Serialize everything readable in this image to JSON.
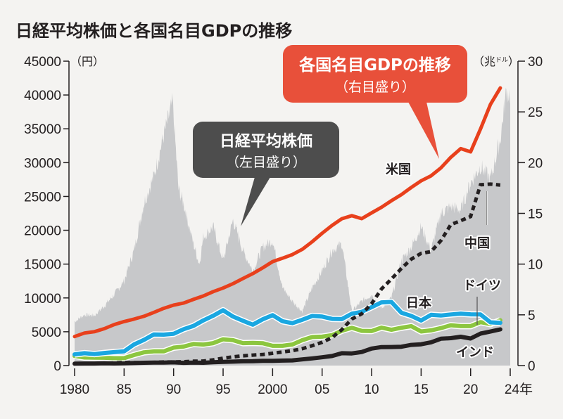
{
  "chart_data": {
    "type": "line",
    "title": "日経平均株価と各国名目GDPの推移",
    "xlabel": "",
    "x_tick_labels": [
      "1980",
      "85",
      "90",
      "95",
      "2000",
      "05",
      "10",
      "15",
      "20",
      "24年"
    ],
    "x_ticks": [
      1980,
      1985,
      1990,
      1995,
      2000,
      2005,
      2010,
      2015,
      2020,
      2024
    ],
    "xlim": [
      1980,
      2024
    ],
    "left_axis": {
      "unit": "（円）",
      "ylim": [
        0,
        45000
      ],
      "ticks": [
        0,
        5000,
        10000,
        15000,
        20000,
        25000,
        30000,
        35000,
        40000,
        45000
      ],
      "tick_labels": [
        "0",
        "5000",
        "10000",
        "15000",
        "20000",
        "25000",
        "30000",
        "35000",
        "40000",
        "45000"
      ]
    },
    "right_axis": {
      "unit": "（兆ドル）",
      "unit_main": "（兆",
      "unit_small": "ドル",
      "unit_close": "）",
      "ylim": [
        0,
        30
      ],
      "ticks": [
        0,
        5,
        10,
        15,
        20,
        25,
        30
      ],
      "tick_labels": [
        "0",
        "5",
        "10",
        "15",
        "20",
        "25",
        "30"
      ]
    },
    "area_series": {
      "name": "日経平均株価",
      "axis": "left",
      "color": "#c7c8ca",
      "x": [
        1980,
        1981,
        1982,
        1983,
        1984,
        1985,
        1986,
        1987,
        1988,
        1989,
        1989.9,
        1990.5,
        1991,
        1992,
        1992.6,
        1993,
        1994,
        1995,
        1996,
        1997,
        1998,
        1999,
        2000,
        2001,
        2002,
        2003,
        2004,
        2005,
        2006,
        2007,
        2008,
        2009,
        2010,
        2011,
        2012,
        2013,
        2014,
        2015,
        2016,
        2017,
        2018,
        2019,
        2020,
        2021,
        2022,
        2023,
        2023.6,
        2024
      ],
      "values": [
        6500,
        7500,
        7400,
        8800,
        10500,
        12500,
        17000,
        24000,
        28000,
        34000,
        38900,
        26000,
        24000,
        18000,
        15000,
        19000,
        20500,
        15500,
        21500,
        17000,
        14000,
        17500,
        18500,
        11500,
        9500,
        8000,
        11500,
        14000,
        17000,
        18000,
        8000,
        9500,
        10500,
        8500,
        10000,
        15500,
        17500,
        20500,
        17000,
        22500,
        23500,
        23000,
        27000,
        29500,
        27500,
        33500,
        40500,
        40000
      ]
    },
    "series": [
      {
        "name": "米国",
        "axis": "right",
        "color": "#e8401c",
        "style": "solid",
        "x": [
          1980,
          1981,
          1982,
          1983,
          1984,
          1985,
          1986,
          1987,
          1988,
          1989,
          1990,
          1991,
          1992,
          1993,
          1994,
          1995,
          1996,
          1997,
          1998,
          1999,
          2000,
          2001,
          2002,
          2003,
          2004,
          2005,
          2006,
          2007,
          2008,
          2009,
          2010,
          2011,
          2012,
          2013,
          2014,
          2015,
          2016,
          2017,
          2018,
          2019,
          2020,
          2021,
          2022,
          2023
        ],
        "values": [
          2.86,
          3.21,
          3.34,
          3.64,
          4.04,
          4.34,
          4.58,
          4.86,
          5.24,
          5.64,
          5.96,
          6.16,
          6.52,
          6.86,
          7.29,
          7.64,
          8.07,
          8.58,
          9.06,
          9.63,
          10.25,
          10.58,
          10.94,
          11.46,
          12.21,
          13.04,
          13.81,
          14.47,
          14.77,
          14.48,
          15.05,
          15.6,
          16.25,
          16.84,
          17.55,
          18.21,
          18.7,
          19.48,
          20.53,
          21.38,
          21.06,
          23.32,
          25.74,
          27.36
        ]
      },
      {
        "name": "中国",
        "axis": "right",
        "color": "#231f20",
        "style": "dashed",
        "x": [
          1980,
          1981,
          1982,
          1983,
          1984,
          1985,
          1986,
          1987,
          1988,
          1989,
          1990,
          1991,
          1992,
          1993,
          1994,
          1995,
          1996,
          1997,
          1998,
          1999,
          2000,
          2001,
          2002,
          2003,
          2004,
          2005,
          2006,
          2007,
          2008,
          2009,
          2010,
          2011,
          2012,
          2013,
          2014,
          2015,
          2016,
          2017,
          2018,
          2019,
          2020,
          2021,
          2022,
          2023
        ],
        "values": [
          0.19,
          0.2,
          0.21,
          0.23,
          0.26,
          0.31,
          0.3,
          0.27,
          0.31,
          0.35,
          0.36,
          0.38,
          0.43,
          0.44,
          0.56,
          0.73,
          0.86,
          0.96,
          1.03,
          1.09,
          1.21,
          1.34,
          1.47,
          1.66,
          1.96,
          2.29,
          2.75,
          3.55,
          4.59,
          5.1,
          6.09,
          7.55,
          8.53,
          9.57,
          10.48,
          11.06,
          11.23,
          12.31,
          13.89,
          14.28,
          14.69,
          17.82,
          17.88,
          17.79
        ]
      },
      {
        "name": "日本",
        "axis": "right",
        "color": "#1aa7e1",
        "style": "solid",
        "x": [
          1980,
          1981,
          1982,
          1983,
          1984,
          1985,
          1986,
          1987,
          1988,
          1989,
          1990,
          1991,
          1992,
          1993,
          1994,
          1995,
          1996,
          1997,
          1998,
          1999,
          2000,
          2001,
          2002,
          2003,
          2004,
          2005,
          2006,
          2007,
          2008,
          2009,
          2010,
          2011,
          2012,
          2013,
          2014,
          2015,
          2016,
          2017,
          2018,
          2019,
          2020,
          2021,
          2022,
          2023
        ],
        "values": [
          1.1,
          1.22,
          1.13,
          1.24,
          1.32,
          1.4,
          2.08,
          2.53,
          3.07,
          3.05,
          3.13,
          3.58,
          3.91,
          4.45,
          4.91,
          5.45,
          4.83,
          4.41,
          4.03,
          4.56,
          4.97,
          4.37,
          4.18,
          4.52,
          4.89,
          4.83,
          4.6,
          4.58,
          5.11,
          5.29,
          5.76,
          6.23,
          6.27,
          5.21,
          4.9,
          4.44,
          5.0,
          4.93,
          5.04,
          5.12,
          5.05,
          5.04,
          4.26,
          4.21
        ]
      },
      {
        "name": "ドイツ",
        "axis": "right",
        "color": "#8cc63f",
        "style": "solid",
        "x": [
          1980,
          1981,
          1982,
          1983,
          1984,
          1985,
          1986,
          1987,
          1988,
          1989,
          1990,
          1991,
          1992,
          1993,
          1994,
          1995,
          1996,
          1997,
          1998,
          1999,
          2000,
          2001,
          2002,
          2003,
          2004,
          2005,
          2006,
          2007,
          2008,
          2009,
          2010,
          2011,
          2012,
          2013,
          2014,
          2015,
          2016,
          2017,
          2018,
          2019,
          2020,
          2021,
          2022,
          2023
        ],
        "values": [
          0.95,
          0.8,
          0.78,
          0.77,
          0.73,
          0.73,
          1.04,
          1.3,
          1.4,
          1.4,
          1.77,
          1.87,
          2.13,
          2.07,
          2.21,
          2.59,
          2.5,
          2.21,
          2.24,
          2.2,
          1.95,
          1.95,
          2.08,
          2.5,
          2.81,
          2.85,
          3.0,
          3.43,
          3.73,
          3.42,
          3.4,
          3.74,
          3.53,
          3.73,
          3.89,
          3.36,
          3.47,
          3.69,
          3.98,
          3.89,
          3.89,
          4.28,
          4.08,
          4.46
        ]
      },
      {
        "name": "インド",
        "axis": "right",
        "color": "#231f20",
        "style": "solid",
        "x": [
          1980,
          1981,
          1982,
          1983,
          1984,
          1985,
          1986,
          1987,
          1988,
          1989,
          1990,
          1991,
          1992,
          1993,
          1994,
          1995,
          1996,
          1997,
          1998,
          1999,
          2000,
          2001,
          2002,
          2003,
          2004,
          2005,
          2006,
          2007,
          2008,
          2009,
          2010,
          2011,
          2012,
          2013,
          2014,
          2015,
          2016,
          2017,
          2018,
          2019,
          2020,
          2021,
          2022,
          2023
        ],
        "values": [
          0.19,
          0.2,
          0.2,
          0.22,
          0.21,
          0.23,
          0.25,
          0.28,
          0.3,
          0.3,
          0.32,
          0.27,
          0.29,
          0.28,
          0.33,
          0.36,
          0.39,
          0.42,
          0.43,
          0.47,
          0.47,
          0.49,
          0.51,
          0.61,
          0.71,
          0.82,
          0.94,
          1.22,
          1.2,
          1.34,
          1.68,
          1.82,
          1.83,
          1.86,
          2.04,
          2.1,
          2.29,
          2.65,
          2.7,
          2.84,
          2.67,
          3.15,
          3.35,
          3.57
        ]
      }
    ],
    "annotations": [
      {
        "text": "米国",
        "series": "米国"
      },
      {
        "text": "中国",
        "series": "中国"
      },
      {
        "text": "日本",
        "series": "日本"
      },
      {
        "text": "ドイツ",
        "series": "ドイツ"
      },
      {
        "text": "インド",
        "series": "インド"
      }
    ],
    "callouts": [
      {
        "title": "日経平均株価",
        "subtitle": "（左目盛り）",
        "color": "#4d4d4d"
      },
      {
        "title": "各国名目GDPの推移",
        "subtitle": "（右目盛り）",
        "color": "#e8503a"
      }
    ],
    "grid": false
  }
}
